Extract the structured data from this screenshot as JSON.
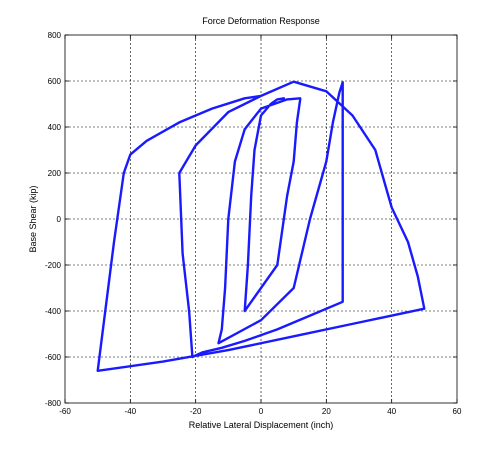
{
  "chart_data": {
    "type": "line",
    "title": "Force Deformation Response",
    "xlabel": "Relative Lateral Displacement (inch)",
    "ylabel": "Base Shear (kip)",
    "xlim": [
      -60,
      60
    ],
    "ylim": [
      -800,
      800
    ],
    "xticks": [
      -60,
      -40,
      -20,
      0,
      20,
      40,
      60
    ],
    "yticks": [
      -800,
      -600,
      -400,
      -200,
      0,
      200,
      400,
      600,
      800
    ],
    "grid": true,
    "color": "#1a1aff",
    "series": [
      {
        "x": [
          0,
          -5,
          -15,
          -25,
          -35,
          -40,
          -42,
          -45,
          -50,
          -30,
          -10,
          10,
          30,
          50,
          48,
          45,
          40,
          38,
          35,
          28,
          20,
          10,
          0,
          -10,
          -20,
          -25,
          -24,
          -22,
          -21,
          -18,
          -12,
          -5,
          5,
          15,
          25,
          25,
          24,
          22,
          20,
          15,
          10,
          0,
          -13,
          -12,
          -11,
          -10,
          -8,
          -5,
          0,
          8,
          12,
          12,
          11,
          10,
          8,
          5,
          -5,
          -4,
          -3,
          -2,
          0,
          3,
          5,
          7
        ],
        "y": [
          535,
          525,
          480,
          420,
          340,
          280,
          200,
          -100,
          -660,
          -620,
          -570,
          -510,
          -450,
          -390,
          -250,
          -100,
          50,
          150,
          300,
          450,
          555,
          597,
          535,
          465,
          320,
          200,
          -150,
          -400,
          -600,
          -580,
          -560,
          -530,
          -480,
          -420,
          -360,
          595,
          550,
          420,
          250,
          0,
          -300,
          -440,
          -540,
          -480,
          -300,
          0,
          250,
          390,
          480,
          520,
          525,
          520,
          420,
          250,
          100,
          -200,
          -400,
          -200,
          100,
          300,
          450,
          500,
          520,
          525
        ]
      }
    ]
  }
}
